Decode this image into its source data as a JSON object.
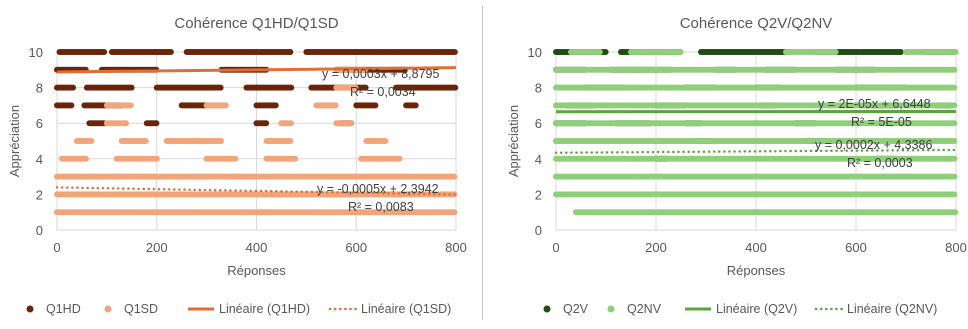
{
  "charts": [
    {
      "id": "left",
      "colors": {
        "a": "#6b2409",
        "b": "#f2a47a",
        "trend_a": "#e06e33",
        "trend_b": "#e06e33"
      },
      "chart_data": {
        "type": "scatter",
        "title": "Cohérence Q1HD/Q1SD",
        "xlabel": "Réponses",
        "ylabel": "Appréciation",
        "xlim": [
          0,
          800
        ],
        "ylim": [
          0,
          10
        ],
        "xticks": [
          0,
          200,
          400,
          600,
          800
        ],
        "yticks": [
          0,
          2,
          4,
          6,
          8,
          10
        ],
        "grid": true,
        "legend_position": "bottom",
        "series": [
          {
            "name": "Q1HD",
            "kind": "points",
            "bands": [
              {
                "y": 10,
                "segments": [
                  [
                    5,
                    95
                  ],
                  [
                    110,
                    230
                  ],
                  [
                    260,
                    470
                  ],
                  [
                    500,
                    800
                  ]
                ]
              },
              {
                "y": 9,
                "segments": [
                  [
                    0,
                    60
                  ],
                  [
                    90,
                    200
                  ],
                  [
                    330,
                    420
                  ],
                  [
                    560,
                    700
                  ]
                ]
              },
              {
                "y": 8,
                "segments": [
                  [
                    0,
                    35
                  ],
                  [
                    60,
                    150
                  ],
                  [
                    200,
                    330
                  ],
                  [
                    380,
                    470
                  ],
                  [
                    510,
                    620
                  ],
                  [
                    680,
                    800
                  ]
                ]
              },
              {
                "y": 7,
                "segments": [
                  [
                    0,
                    30
                  ],
                  [
                    55,
                    130
                  ],
                  [
                    250,
                    300
                  ],
                  [
                    400,
                    440
                  ],
                  [
                    600,
                    640
                  ],
                  [
                    700,
                    720
                  ]
                ]
              },
              {
                "y": 6,
                "segments": [
                  [
                    65,
                    95
                  ],
                  [
                    180,
                    200
                  ],
                  [
                    400,
                    420
                  ],
                  [
                    570,
                    590
                  ]
                ]
              }
            ]
          },
          {
            "name": "Q1SD",
            "kind": "points",
            "bands": [
              {
                "y": 9,
                "segments": [
                  [
                    560,
                    620
                  ]
                ]
              },
              {
                "y": 8,
                "segments": [
                  [
                    560,
                    600
                  ]
                ]
              },
              {
                "y": 7,
                "segments": [
                  [
                    100,
                    150
                  ],
                  [
                    300,
                    340
                  ],
                  [
                    520,
                    560
                  ]
                ]
              },
              {
                "y": 6,
                "segments": [
                  [
                    100,
                    140
                  ],
                  [
                    450,
                    470
                  ],
                  [
                    560,
                    590
                  ]
                ]
              },
              {
                "y": 5,
                "segments": [
                  [
                    40,
                    70
                  ],
                  [
                    130,
                    180
                  ],
                  [
                    220,
                    330
                  ],
                  [
                    420,
                    470
                  ],
                  [
                    620,
                    660
                  ]
                ]
              },
              {
                "y": 4,
                "segments": [
                  [
                    10,
                    60
                  ],
                  [
                    120,
                    200
                  ],
                  [
                    300,
                    360
                  ],
                  [
                    420,
                    480
                  ],
                  [
                    610,
                    690
                  ]
                ]
              },
              {
                "y": 3,
                "segments": [
                  [
                    0,
                    800
                  ]
                ]
              },
              {
                "y": 2,
                "segments": [
                  [
                    0,
                    800
                  ]
                ]
              },
              {
                "y": 1,
                "segments": [
                  [
                    0,
                    800
                  ]
                ]
              }
            ]
          },
          {
            "name": "Linéaire (Q1HD)",
            "kind": "trend-solid"
          },
          {
            "name": "Linéaire (Q1SD)",
            "kind": "trend-dotted"
          }
        ],
        "trendlines": [
          {
            "series": "Linéaire (Q1HD)",
            "slope": 0.0003,
            "intercept": 8.8795,
            "equation": "y = 0,0003x + 8,8795",
            "r2": "R² = 0,0034"
          },
          {
            "series": "Linéaire (Q1SD)",
            "slope": -0.0005,
            "intercept": 2.3942,
            "equation": "y = -0,0005x + 2,3942",
            "r2": "R² = 0,0083"
          }
        ]
      }
    },
    {
      "id": "right",
      "colors": {
        "a": "#1f4d14",
        "b": "#8fcf79",
        "trend_a": "#5aa63a",
        "trend_b": "#5aa63a"
      },
      "chart_data": {
        "type": "scatter",
        "title": "Cohérence Q2V/Q2NV",
        "xlabel": "Réponses",
        "ylabel": "Appréciation",
        "xlim": [
          0,
          800
        ],
        "ylim": [
          0,
          10
        ],
        "xticks": [
          0,
          200,
          400,
          600,
          800
        ],
        "yticks": [
          0,
          2,
          4,
          6,
          8,
          10
        ],
        "grid": true,
        "legend_position": "bottom",
        "series": [
          {
            "name": "Q2V",
            "kind": "points",
            "bands": [
              {
                "y": 10,
                "segments": [
                  [
                    0,
                    100
                  ],
                  [
                    130,
                    250
                  ],
                  [
                    290,
                    470
                  ],
                  [
                    520,
                    690
                  ],
                  [
                    740,
                    800
                  ]
                ]
              },
              {
                "y": 9,
                "segments": [
                  [
                    0,
                    60
                  ],
                  [
                    110,
                    230
                  ],
                  [
                    320,
                    360
                  ],
                  [
                    420,
                    480
                  ],
                  [
                    560,
                    640
                  ]
                ]
              },
              {
                "y": 8,
                "segments": [
                  [
                    60,
                    140
                  ],
                  [
                    260,
                    320
                  ],
                  [
                    400,
                    450
                  ],
                  [
                    600,
                    700
                  ]
                ]
              },
              {
                "y": 7,
                "segments": [
                  [
                    20,
                    80
                  ],
                  [
                    200,
                    260
                  ],
                  [
                    410,
                    440
                  ],
                  [
                    620,
                    680
                  ],
                  [
                    760,
                    790
                  ]
                ]
              },
              {
                "y": 6,
                "segments": [
                  [
                    0,
                    60
                  ],
                  [
                    120,
                    190
                  ],
                  [
                    260,
                    290
                  ],
                  [
                    480,
                    520
                  ]
                ]
              },
              {
                "y": 5,
                "segments": [
                  [
                    280,
                    310
                  ],
                  [
                    500,
                    540
                  ]
                ]
              },
              {
                "y": 4,
                "segments": [
                  [
                    200,
                    220
                  ],
                  [
                    640,
                    680
                  ]
                ]
              }
            ]
          },
          {
            "name": "Q2NV",
            "kind": "points",
            "bands": [
              {
                "y": 10,
                "segments": [
                  [
                    30,
                    90
                  ],
                  [
                    150,
                    250
                  ],
                  [
                    460,
                    560
                  ],
                  [
                    700,
                    800
                  ]
                ]
              },
              {
                "y": 9,
                "segments": [
                  [
                    0,
                    800
                  ]
                ]
              },
              {
                "y": 8,
                "segments": [
                  [
                    0,
                    800
                  ]
                ]
              },
              {
                "y": 7,
                "segments": [
                  [
                    0,
                    800
                  ]
                ]
              },
              {
                "y": 6,
                "segments": [
                  [
                    0,
                    800
                  ]
                ]
              },
              {
                "y": 5,
                "segments": [
                  [
                    0,
                    800
                  ]
                ]
              },
              {
                "y": 4,
                "segments": [
                  [
                    0,
                    800
                  ]
                ]
              },
              {
                "y": 3,
                "segments": [
                  [
                    0,
                    800
                  ]
                ]
              },
              {
                "y": 2,
                "segments": [
                  [
                    0,
                    800
                  ]
                ]
              },
              {
                "y": 1,
                "segments": [
                  [
                    40,
                    800
                  ]
                ]
              }
            ]
          },
          {
            "name": "Linéaire (Q2V)",
            "kind": "trend-solid"
          },
          {
            "name": "Linéaire (Q2NV)",
            "kind": "trend-dotted"
          }
        ],
        "trendlines": [
          {
            "series": "Linéaire (Q2V)",
            "slope": 2e-05,
            "intercept": 6.6448,
            "equation": "y = 2E-05x + 6,6448",
            "r2": "R² = 5E-05"
          },
          {
            "series": "Linéaire (Q2NV)",
            "slope": 0.0002,
            "intercept": 4.3386,
            "equation": "y = 0,0002x + 4,3386",
            "r2": "R² = 0,0003"
          }
        ]
      }
    }
  ]
}
